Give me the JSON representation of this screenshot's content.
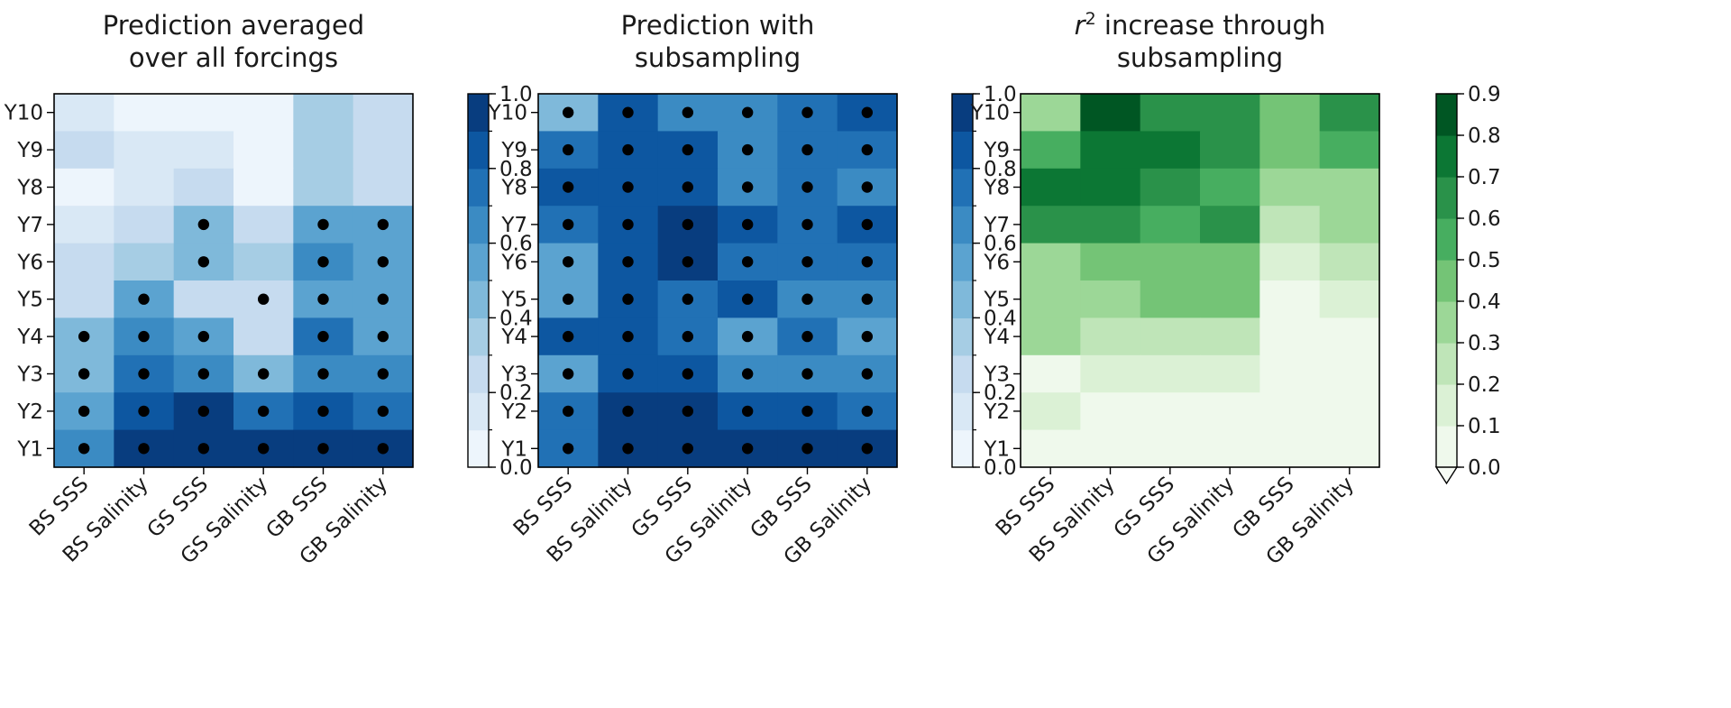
{
  "chart_data": [
    {
      "type": "heatmap",
      "title_lines": [
        "Prediction averaged",
        "over all forcings"
      ],
      "colormap": "Blues",
      "x_categories": [
        "BS SSS",
        "BS Salinity",
        "GS SSS",
        "GS Salinity",
        "GB SSS",
        "GB Salinity"
      ],
      "y_categories": [
        "Y10",
        "Y9",
        "Y8",
        "Y7",
        "Y6",
        "Y5",
        "Y4",
        "Y3",
        "Y2",
        "Y1"
      ],
      "values": [
        [
          0.15,
          0.05,
          0.05,
          0.05,
          0.35,
          0.25
        ],
        [
          0.25,
          0.15,
          0.15,
          0.05,
          0.35,
          0.25
        ],
        [
          0.05,
          0.15,
          0.25,
          0.05,
          0.35,
          0.25
        ],
        [
          0.15,
          0.25,
          0.45,
          0.25,
          0.55,
          0.55
        ],
        [
          0.25,
          0.35,
          0.45,
          0.35,
          0.65,
          0.55
        ],
        [
          0.25,
          0.55,
          0.25,
          0.25,
          0.55,
          0.55
        ],
        [
          0.45,
          0.65,
          0.55,
          0.25,
          0.75,
          0.55
        ],
        [
          0.45,
          0.75,
          0.65,
          0.45,
          0.65,
          0.65
        ],
        [
          0.55,
          0.85,
          0.95,
          0.75,
          0.85,
          0.75
        ],
        [
          0.65,
          0.95,
          0.95,
          0.95,
          0.95,
          0.95
        ]
      ],
      "significant": [
        [
          0,
          0,
          0,
          0,
          0,
          0
        ],
        [
          0,
          0,
          0,
          0,
          0,
          0
        ],
        [
          0,
          0,
          0,
          0,
          0,
          0
        ],
        [
          0,
          0,
          1,
          0,
          1,
          1
        ],
        [
          0,
          0,
          1,
          0,
          1,
          1
        ],
        [
          0,
          1,
          0,
          1,
          1,
          1
        ],
        [
          1,
          1,
          1,
          0,
          1,
          1
        ],
        [
          1,
          1,
          1,
          1,
          1,
          1
        ],
        [
          1,
          1,
          1,
          1,
          1,
          1
        ],
        [
          1,
          1,
          1,
          1,
          1,
          1
        ]
      ],
      "colorbar": {
        "min": 0.0,
        "max": 1.0,
        "levels": 10,
        "tick_values": [
          0.0,
          0.2,
          0.4,
          0.6,
          0.8,
          1.0
        ],
        "tick_labels": [
          "0.0",
          "0.2",
          "0.4",
          "0.6",
          "0.8",
          "1.0"
        ],
        "extend_min": false
      }
    },
    {
      "type": "heatmap",
      "title_lines": [
        "Prediction with",
        "subsampling"
      ],
      "colormap": "Blues",
      "x_categories": [
        "BS SSS",
        "BS Salinity",
        "GS SSS",
        "GS Salinity",
        "GB SSS",
        "GB Salinity"
      ],
      "y_categories": [
        "Y10",
        "Y9",
        "Y8",
        "Y7",
        "Y6",
        "Y5",
        "Y4",
        "Y3",
        "Y2",
        "Y1"
      ],
      "values": [
        [
          0.45,
          0.85,
          0.65,
          0.65,
          0.75,
          0.85
        ],
        [
          0.75,
          0.85,
          0.85,
          0.65,
          0.75,
          0.75
        ],
        [
          0.85,
          0.85,
          0.85,
          0.65,
          0.75,
          0.65
        ],
        [
          0.75,
          0.85,
          0.95,
          0.85,
          0.75,
          0.85
        ],
        [
          0.55,
          0.85,
          0.95,
          0.75,
          0.75,
          0.75
        ],
        [
          0.55,
          0.85,
          0.75,
          0.85,
          0.65,
          0.65
        ],
        [
          0.85,
          0.85,
          0.75,
          0.55,
          0.75,
          0.55
        ],
        [
          0.55,
          0.85,
          0.85,
          0.65,
          0.65,
          0.65
        ],
        [
          0.75,
          0.95,
          0.95,
          0.85,
          0.85,
          0.75
        ],
        [
          0.75,
          0.95,
          0.95,
          0.95,
          0.95,
          0.95
        ]
      ],
      "significant": [
        [
          1,
          1,
          1,
          1,
          1,
          1
        ],
        [
          1,
          1,
          1,
          1,
          1,
          1
        ],
        [
          1,
          1,
          1,
          1,
          1,
          1
        ],
        [
          1,
          1,
          1,
          1,
          1,
          1
        ],
        [
          1,
          1,
          1,
          1,
          1,
          1
        ],
        [
          1,
          1,
          1,
          1,
          1,
          1
        ],
        [
          1,
          1,
          1,
          1,
          1,
          1
        ],
        [
          1,
          1,
          1,
          1,
          1,
          1
        ],
        [
          1,
          1,
          1,
          1,
          1,
          1
        ],
        [
          1,
          1,
          1,
          1,
          1,
          1
        ]
      ],
      "colorbar": {
        "min": 0.0,
        "max": 1.0,
        "levels": 10,
        "tick_values": [
          0.0,
          0.2,
          0.4,
          0.6,
          0.8,
          1.0
        ],
        "tick_labels": [
          "0.0",
          "0.2",
          "0.4",
          "0.6",
          "0.8",
          "1.0"
        ],
        "extend_min": false
      }
    },
    {
      "type": "heatmap",
      "title_lines": [
        "increase through",
        "subsampling"
      ],
      "title_math": {
        "symbol": "r",
        "superscript": "2"
      },
      "colormap": "Greens",
      "x_categories": [
        "BS SSS",
        "BS Salinity",
        "GS SSS",
        "GS Salinity",
        "GB SSS",
        "GB Salinity"
      ],
      "y_categories": [
        "Y10",
        "Y9",
        "Y8",
        "Y7",
        "Y6",
        "Y5",
        "Y4",
        "Y3",
        "Y2",
        "Y1"
      ],
      "values": [
        [
          0.35,
          0.85,
          0.65,
          0.65,
          0.45,
          0.65
        ],
        [
          0.55,
          0.75,
          0.75,
          0.65,
          0.45,
          0.55
        ],
        [
          0.75,
          0.75,
          0.65,
          0.55,
          0.35,
          0.35
        ],
        [
          0.65,
          0.65,
          0.55,
          0.65,
          0.25,
          0.35
        ],
        [
          0.35,
          0.45,
          0.45,
          0.45,
          0.15,
          0.25
        ],
        [
          0.35,
          0.35,
          0.45,
          0.45,
          0.05,
          0.15
        ],
        [
          0.35,
          0.25,
          0.25,
          0.25,
          0.05,
          0.05
        ],
        [
          0.05,
          0.15,
          0.15,
          0.15,
          0.05,
          0.05
        ],
        [
          0.15,
          0.05,
          0.05,
          0.05,
          0.05,
          0.05
        ],
        [
          0.05,
          0.05,
          0.05,
          0.05,
          0.05,
          0.05
        ]
      ],
      "significant": null,
      "colorbar": {
        "min": 0.0,
        "max": 0.9,
        "levels": 9,
        "tick_values": [
          0.0,
          0.1,
          0.2,
          0.3,
          0.4,
          0.5,
          0.6,
          0.7,
          0.8,
          0.9
        ],
        "tick_labels": [
          "0.0",
          "0.1",
          "0.2",
          "0.3",
          "0.4",
          "0.5",
          "0.6",
          "0.7",
          "0.8",
          "0.9"
        ],
        "extend_min": true
      }
    }
  ]
}
